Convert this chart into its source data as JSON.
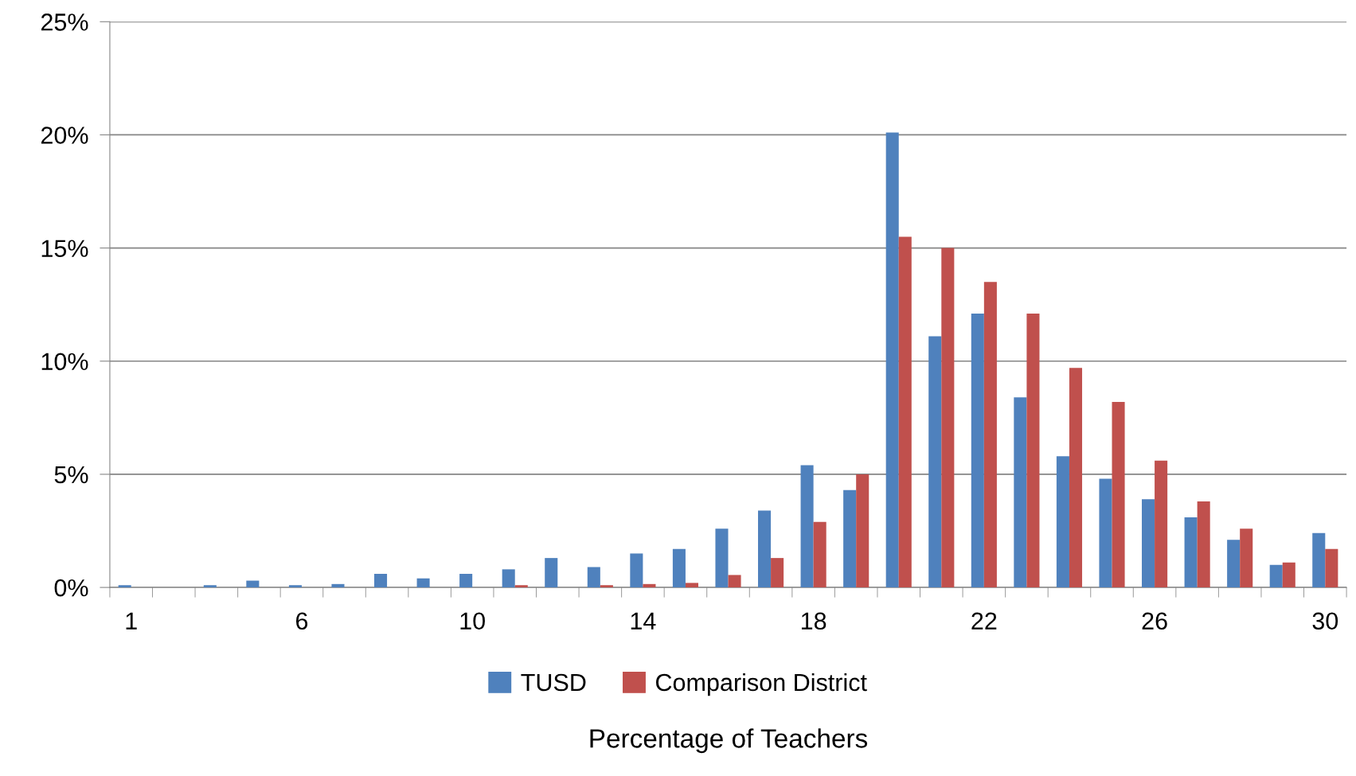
{
  "chart_data": {
    "type": "bar",
    "xlabel": "Percentage of Teachers",
    "categories": [
      "1",
      null,
      null,
      null,
      "6",
      null,
      null,
      null,
      "10",
      null,
      null,
      null,
      "14",
      null,
      null,
      null,
      "18",
      null,
      null,
      null,
      "22",
      null,
      null,
      null,
      "26",
      null,
      null,
      null,
      "30"
    ],
    "series": [
      {
        "name": "TUSD",
        "color": "#4f81bd",
        "values": [
          0.1,
          null,
          0.1,
          0.3,
          0.1,
          0.15,
          0.6,
          0.4,
          0.6,
          0.8,
          1.3,
          0.9,
          1.5,
          1.7,
          2.6,
          3.4,
          5.4,
          4.3,
          20.1,
          11.1,
          12.1,
          8.4,
          5.8,
          4.8,
          3.9,
          3.1,
          2.1,
          1.0,
          2.4
        ]
      },
      {
        "name": "Comparison District",
        "color": "#c0504d",
        "values": [
          0,
          0,
          0,
          0,
          0,
          null,
          null,
          0,
          null,
          0.1,
          null,
          0.1,
          0.15,
          0.2,
          0.55,
          1.3,
          2.9,
          5.0,
          15.5,
          15.0,
          13.5,
          12.1,
          9.7,
          8.2,
          5.6,
          3.8,
          2.6,
          1.1,
          1.7
        ]
      }
    ],
    "ylim": [
      0,
      25
    ],
    "yticks": [
      {
        "value": 0,
        "label": "0%"
      },
      {
        "value": 5,
        "label": "5%"
      },
      {
        "value": 10,
        "label": "10%"
      },
      {
        "value": 15,
        "label": "15%"
      },
      {
        "value": 20,
        "label": "20%"
      },
      {
        "value": 25,
        "label": "25%"
      }
    ],
    "grid": "y",
    "legend": "bottom"
  }
}
